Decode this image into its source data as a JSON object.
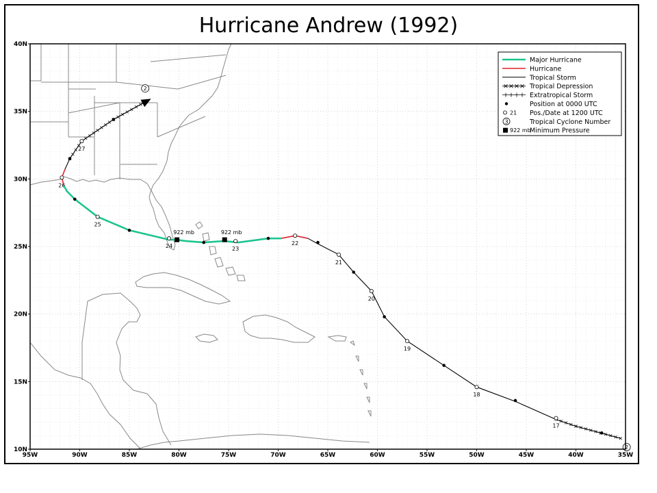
{
  "title": "Hurricane Andrew (1992)",
  "map": {
    "lon_range": [
      -95,
      -35
    ],
    "lat_range": [
      10,
      40
    ],
    "lon_tick_labels": [
      "95W",
      "90W",
      "85W",
      "80W",
      "75W",
      "70W",
      "65W",
      "60W",
      "55W",
      "50W",
      "45W",
      "40W",
      "35W"
    ],
    "lat_tick_labels": [
      "10N",
      "15N",
      "20N",
      "25N",
      "30N",
      "35N",
      "40N"
    ],
    "grid": true,
    "colors": {
      "major_hurricane": "#1dc48f",
      "hurricane": "#e0202a",
      "tropical_storm": "#000000",
      "land_outline": "#888888"
    }
  },
  "legend": {
    "placement": "top-right",
    "items": [
      {
        "label": "Major Hurricane",
        "symbol": "line-green"
      },
      {
        "label": "Hurricane",
        "symbol": "line-red"
      },
      {
        "label": "Tropical Storm",
        "symbol": "line-black"
      },
      {
        "label": "Tropical Depression",
        "symbol": "line-x"
      },
      {
        "label": "Extratropical Storm",
        "symbol": "line-plus"
      },
      {
        "label": "Position at 0000 UTC",
        "symbol": "dot-filled"
      },
      {
        "label": "Pos./Date at 1200 UTC",
        "symbol": "dot-open",
        "example": "21"
      },
      {
        "label": "Tropical Cyclone Number",
        "symbol": "circle-number",
        "example": "3"
      },
      {
        "label": "Minimum Pressure",
        "symbol": "square-filled",
        "example": "922 mb"
      }
    ]
  },
  "track": {
    "cyclone_number": "2",
    "segments": [
      {
        "stage": "tropical_depression",
        "points": [
          [
            -35.5,
            10.8
          ],
          [
            -37.5,
            11.2
          ],
          [
            -40,
            11.7
          ],
          [
            -42,
            12.2
          ]
        ]
      },
      {
        "stage": "tropical_storm",
        "points": [
          [
            -42,
            12.2
          ],
          [
            -46,
            13.5
          ],
          [
            -50,
            14.6
          ],
          [
            -53.3,
            16.2
          ],
          [
            -57,
            18.0
          ],
          [
            -59.3,
            19.8
          ],
          [
            -60.6,
            21.7
          ],
          [
            -62.4,
            23.1
          ],
          [
            -63.9,
            24.4
          ],
          [
            -66,
            25.2
          ],
          [
            -67,
            25.6
          ]
        ]
      },
      {
        "stage": "hurricane",
        "points": [
          [
            -67,
            25.6
          ],
          [
            -68.3,
            25.8
          ],
          [
            -69.7,
            25.6
          ]
        ]
      },
      {
        "stage": "major_hurricane",
        "points": [
          [
            -69.7,
            25.6
          ],
          [
            -71,
            25.6
          ],
          [
            -74,
            25.3
          ],
          [
            -75.5,
            25.4
          ],
          [
            -77.5,
            25.3
          ],
          [
            -79.3,
            25.4
          ],
          [
            -80.3,
            25.5
          ],
          [
            -81,
            25.5
          ],
          [
            -85,
            26.2
          ],
          [
            -88.2,
            27.2
          ],
          [
            -90.5,
            28.5
          ],
          [
            -91.3,
            29.1
          ],
          [
            -91.6,
            29.5
          ]
        ]
      },
      {
        "stage": "hurricane",
        "points": [
          [
            -91.6,
            29.5
          ],
          [
            -91.8,
            30.1
          ],
          [
            -91.5,
            30.7
          ]
        ]
      },
      {
        "stage": "tropical_storm",
        "points": [
          [
            -91.5,
            30.7
          ],
          [
            -91.0,
            31.5
          ]
        ]
      },
      {
        "stage": "tropical_depression",
        "points": [
          [
            -91.0,
            31.5
          ],
          [
            -89.8,
            32.8
          ],
          [
            -86.6,
            34.4
          ],
          [
            -83.4,
            35.7
          ]
        ]
      }
    ],
    "positions_0000": [
      [
        -37.4,
        11.2
      ],
      [
        -46.1,
        13.6
      ],
      [
        -53.3,
        16.2
      ],
      [
        -59.3,
        19.8
      ],
      [
        -62.4,
        23.1
      ],
      [
        -66,
        25.3
      ],
      [
        -71,
        25.6
      ],
      [
        -77.5,
        25.3
      ],
      [
        -85,
        26.2
      ],
      [
        -90.5,
        28.5
      ],
      [
        -91,
        31.5
      ],
      [
        -86.6,
        34.4
      ]
    ],
    "positions_1200": [
      {
        "lon": -42,
        "lat": 12.3,
        "date": "17"
      },
      {
        "lon": -50,
        "lat": 14.6,
        "date": "18"
      },
      {
        "lon": -57,
        "lat": 18.0,
        "date": "19"
      },
      {
        "lon": -60.6,
        "lat": 21.7,
        "date": "20"
      },
      {
        "lon": -63.9,
        "lat": 24.4,
        "date": "21"
      },
      {
        "lon": -68.3,
        "lat": 25.8,
        "date": "22"
      },
      {
        "lon": -74.3,
        "lat": 25.4,
        "date": "23"
      },
      {
        "lon": -81,
        "lat": 25.6,
        "date": "24"
      },
      {
        "lon": -88.2,
        "lat": 27.2,
        "date": "25"
      },
      {
        "lon": -91.8,
        "lat": 30.1,
        "date": "26"
      },
      {
        "lon": -89.8,
        "lat": 32.8,
        "date": "27"
      }
    ],
    "min_pressure": [
      {
        "lon": -80.2,
        "lat": 25.5,
        "label": "922 mb"
      },
      {
        "lon": -75.4,
        "lat": 25.5,
        "label": "922 mb"
      }
    ],
    "start_marker": {
      "lon": -35.3,
      "lat": 10.1,
      "label": "2"
    },
    "end_marker": {
      "lon": -83.4,
      "lat": 36.7,
      "label": "2"
    }
  }
}
